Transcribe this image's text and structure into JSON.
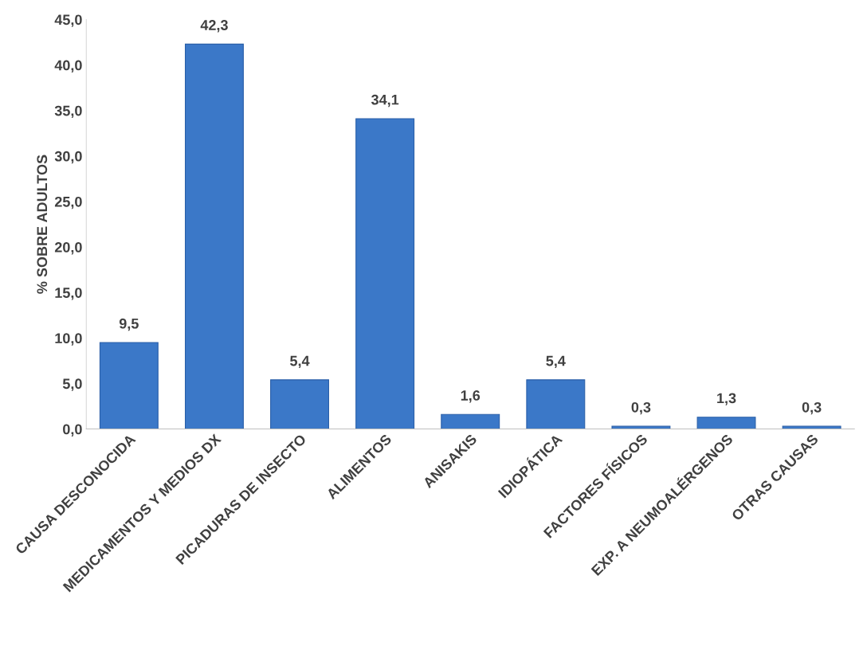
{
  "chart_data": {
    "type": "bar",
    "ylabel": "% SOBRE ADULTOS",
    "categories": [
      "CAUSA DESCONOCIDA",
      "MEDICAMENTOS Y MEDIOS DX",
      "PICADURAS DE INSECTO",
      "ALIMENTOS",
      "ANISAKIS",
      "IDIOPÁTICA",
      "FACTORES FÍSICOS",
      "EXP. A NEUMOALÉRGENOS",
      "OTRAS CAUSAS"
    ],
    "values": [
      9.5,
      42.3,
      5.4,
      34.1,
      1.6,
      5.4,
      0.3,
      1.3,
      0.3
    ],
    "value_labels": [
      "9,5",
      "42,3",
      "5,4",
      "34,1",
      "1,6",
      "5,4",
      "0,3",
      "1,3",
      "0,3"
    ],
    "color": "#3b78c8",
    "ylim": [
      0,
      45
    ],
    "yticks": [
      {
        "value": 0,
        "label": "0,0"
      },
      {
        "value": 5,
        "label": "5,0"
      },
      {
        "value": 10,
        "label": "10,0"
      },
      {
        "value": 15,
        "label": "15,0"
      },
      {
        "value": 20,
        "label": "20,0"
      },
      {
        "value": 25,
        "label": "25,0"
      },
      {
        "value": 30,
        "label": "30,0"
      },
      {
        "value": 35,
        "label": "35,0"
      },
      {
        "value": 40,
        "label": "40,0"
      },
      {
        "value": 45,
        "label": "45,0"
      }
    ],
    "grid": false
  }
}
